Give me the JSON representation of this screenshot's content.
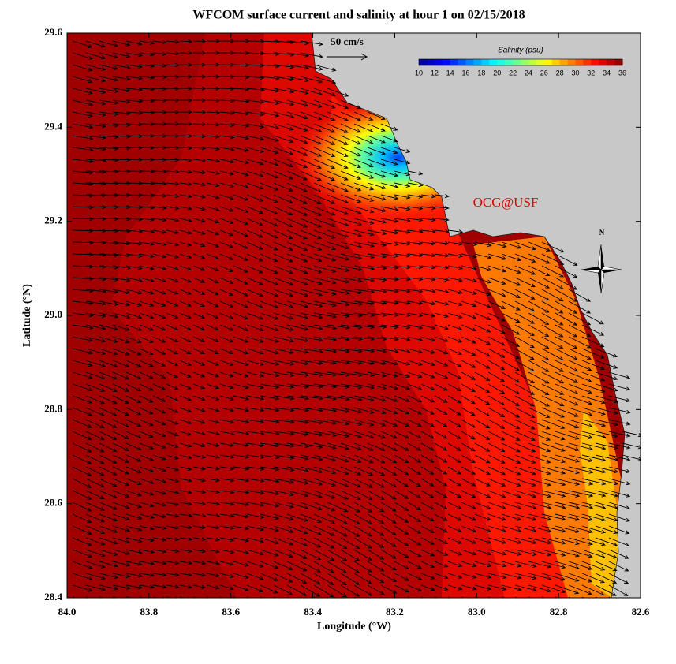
{
  "map": {
    "title": "WFCOM surface current and salinity at hour 1 on 02/15/2018",
    "x_axis": {
      "label": "Longitude (°W)",
      "lim": [
        84.0,
        82.6
      ],
      "ticks": [
        {
          "value": 84,
          "label": "84.0"
        },
        83.8,
        83.6,
        83.4,
        83.2,
        {
          "value": 83,
          "label": "83.0"
        },
        82.8,
        82.6
      ]
    },
    "y_axis": {
      "label": "Latitude (°N)",
      "lim": [
        28.4,
        29.6
      ],
      "ticks": [
        28.4,
        28.6,
        28.8,
        {
          "value": 29,
          "label": "29.0"
        },
        29.2,
        29.4,
        29.6
      ]
    },
    "colorbar": {
      "title": "Salinity (psu)",
      "lim": [
        10,
        36
      ],
      "ticks": [
        10,
        12,
        14,
        16,
        18,
        20,
        22,
        24,
        26,
        28,
        30,
        32,
        34,
        36
      ],
      "colormap": [
        "#00008f",
        "#0000ff",
        "#0080ff",
        "#00ffff",
        "#80ff80",
        "#ffff00",
        "#ff8000",
        "#ff0000",
        "#800000"
      ]
    },
    "scale_label": "50 cm/s",
    "watermark": "OCG@USF",
    "compass_label": "N"
  }
}
